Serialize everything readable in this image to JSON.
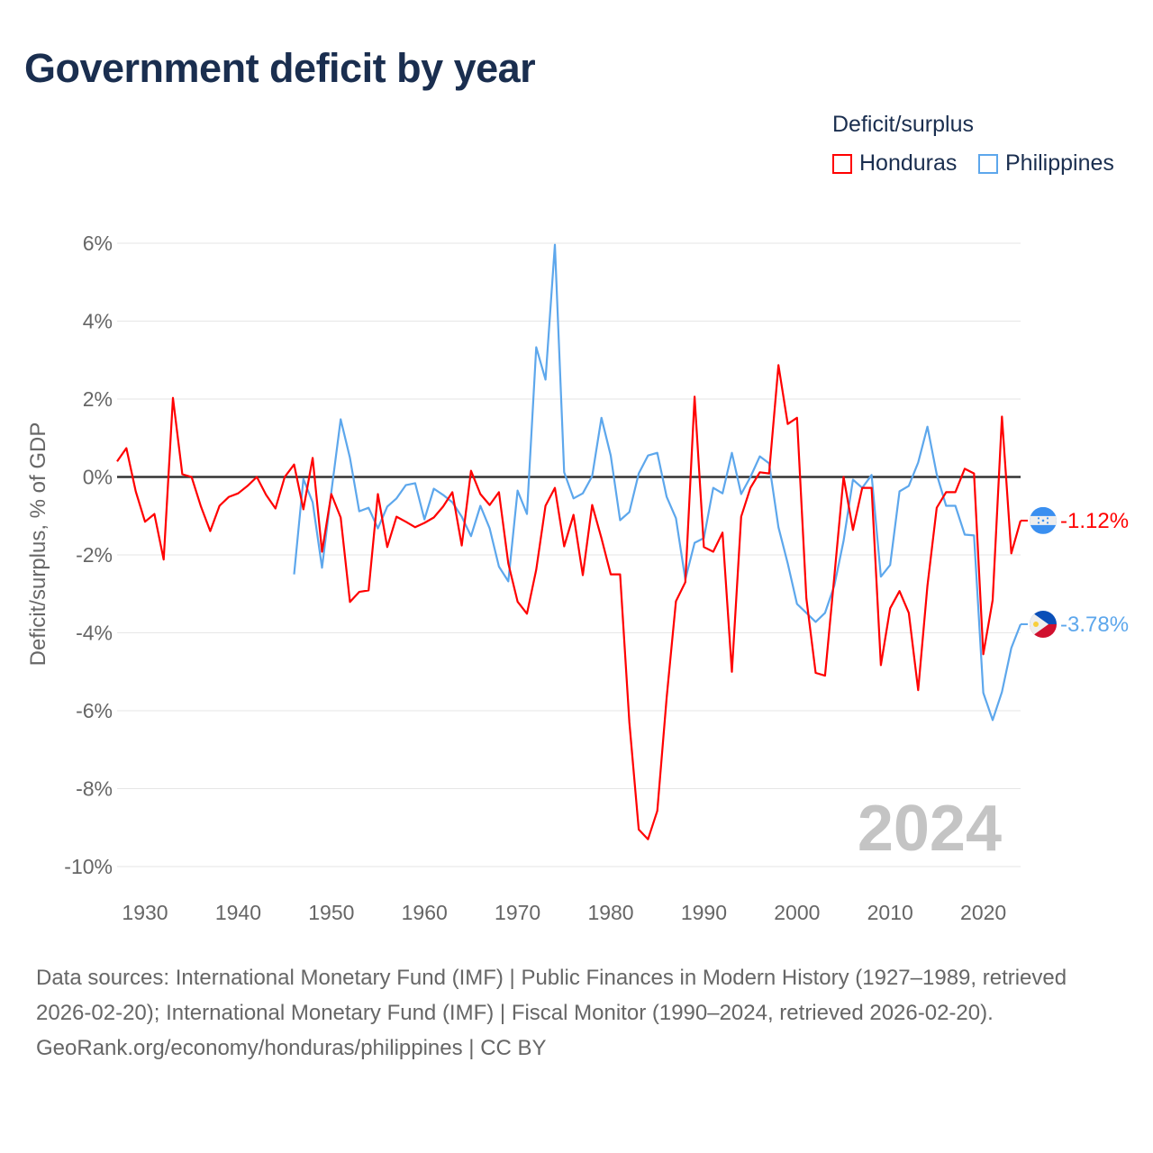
{
  "title": "Government deficit by year",
  "footer": {
    "sources": "Data sources: International Monetary Fund (IMF) | Public Finances in Modern History (1927–1989, retrieved 2026-02-20); International Monetary Fund (IMF) | Fiscal Monitor (1990–2024, retrieved 2026-02-20).",
    "attribution": "GeoRank.org/economy/honduras/philippines | CC BY"
  },
  "chart_data": {
    "type": "line",
    "title": "Government deficit by year",
    "xlabel": "",
    "ylabel": "Deficit/surplus, % of GDP",
    "legend_title": "Deficit/surplus",
    "legend_position": "top-right",
    "year_label": "2024",
    "xlim": [
      1927,
      2024
    ],
    "ylim": [
      -10,
      6
    ],
    "x_ticks": [
      1930,
      1940,
      1950,
      1960,
      1970,
      1980,
      1990,
      2000,
      2010,
      2020
    ],
    "x_tick_labels": [
      "1930",
      "1940",
      "1950",
      "1960",
      "1970",
      "1980",
      "1990",
      "2000",
      "2010",
      "2020"
    ],
    "y_ticks": [
      6,
      4,
      2,
      0,
      -2,
      -4,
      -6,
      -8,
      -10
    ],
    "y_tick_labels": [
      "6%",
      "4%",
      "2%",
      "0%",
      "-2%",
      "-4%",
      "-6%",
      "-8%",
      "-10%"
    ],
    "grid": true,
    "series": [
      {
        "name": "Honduras",
        "color": "#ff0000",
        "flag": "honduras-flag-icon",
        "end_label": "-1.12%",
        "start_year": 1927,
        "values": [
          0.4,
          0.74,
          -0.37,
          -1.15,
          -0.95,
          -2.12,
          2.03,
          0.07,
          0.0,
          -0.76,
          -1.39,
          -0.74,
          -0.51,
          -0.42,
          -0.23,
          0.0,
          -0.46,
          -0.81,
          0.0,
          0.32,
          -0.83,
          0.49,
          -1.92,
          -0.44,
          -1.04,
          -3.21,
          -2.95,
          -2.91,
          -0.44,
          -1.8,
          -1.02,
          -1.15,
          -1.29,
          -1.18,
          -1.04,
          -0.76,
          -0.39,
          -1.76,
          0.16,
          -0.44,
          -0.72,
          -0.39,
          -2.22,
          -3.2,
          -3.51,
          -2.38,
          -0.74,
          -0.28,
          -1.78,
          -0.97,
          -2.52,
          -0.72,
          -1.57,
          -2.5,
          -2.5,
          -6.3,
          -9.05,
          -9.3,
          -8.57,
          -5.66,
          -3.19,
          -2.7,
          2.06,
          -1.8,
          -1.92,
          -1.43,
          -5.0,
          -1.02,
          -0.28,
          0.12,
          0.09,
          2.87,
          1.36,
          1.52,
          -3.12,
          -5.03,
          -5.1,
          -2.56,
          0.0,
          -1.36,
          -0.28,
          -0.28,
          -4.83,
          -3.37,
          -2.93,
          -3.49,
          -5.47,
          -2.79,
          -0.79,
          -0.39,
          -0.39,
          0.21,
          0.09,
          -4.55,
          -3.16,
          1.55,
          -1.96,
          -1.12
        ]
      },
      {
        "name": "Philippines",
        "color": "#5da7ec",
        "flag": "philippines-flag-icon",
        "end_label": "-3.78%",
        "start_year": 1946,
        "values": [
          -2.5,
          -0.05,
          -0.65,
          -2.33,
          -0.39,
          1.48,
          0.49,
          -0.88,
          -0.79,
          -1.32,
          -0.76,
          -0.55,
          -0.21,
          -0.16,
          -1.09,
          -0.3,
          -0.46,
          -0.65,
          -1.02,
          -1.52,
          -0.74,
          -1.32,
          -2.3,
          -2.68,
          -0.35,
          -0.95,
          3.33,
          2.5,
          5.96,
          0.12,
          -0.55,
          -0.42,
          0.02,
          1.52,
          0.55,
          -1.11,
          -0.9,
          0.09,
          0.55,
          0.62,
          -0.51,
          -1.06,
          -2.63,
          -1.69,
          -1.57,
          -0.28,
          -0.42,
          0.62,
          -0.44,
          0.0,
          0.53,
          0.35,
          -1.29,
          -2.22,
          -3.26,
          -3.49,
          -3.72,
          -3.49,
          -2.79,
          -1.64,
          -0.07,
          -0.28,
          0.05,
          -2.56,
          -2.26,
          -0.37,
          -0.23,
          0.37,
          1.29,
          0.07,
          -0.74,
          -0.74,
          -1.48,
          -1.5,
          -5.54,
          -6.24,
          -5.52,
          -4.39,
          -3.78
        ]
      }
    ]
  }
}
